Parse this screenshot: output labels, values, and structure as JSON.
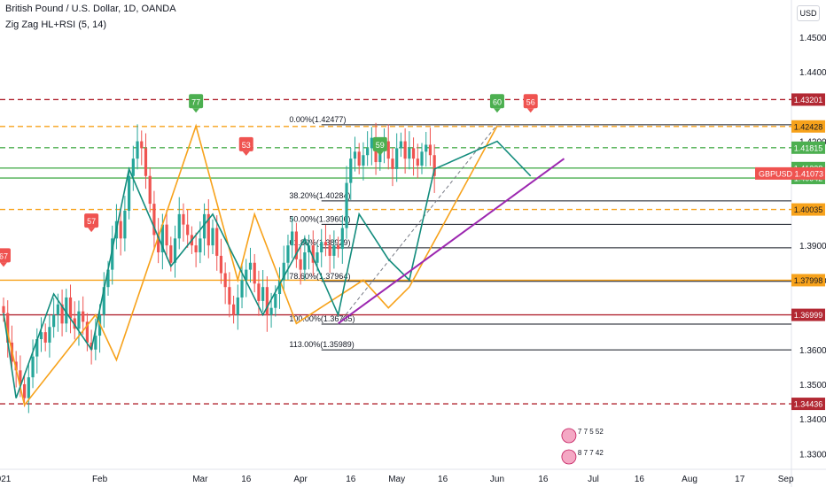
{
  "header": {
    "title": "British Pound / U.S. Dollar, 1D, OANDA",
    "indicator": "Zig Zag HL+RSI (5, 14)",
    "currency": "USD"
  },
  "colors": {
    "up": "#26a69a",
    "down": "#ef5350",
    "zigzag_orange": "#f7a21b",
    "zigzag_teal": "#138c7d",
    "trend_purple": "#9c27b0",
    "red_level": "#b22833",
    "orange_level": "#f7a21b",
    "green_level": "#4caf50",
    "fib_line": "#131722",
    "price_tag": "#ef5350"
  },
  "chart_data": {
    "type": "candlestick",
    "instrument": "GBPUSD",
    "y_range": [
      1.3255,
      1.4607
    ],
    "y_ticks": [
      "1.45000",
      "1.44000",
      "1.42000",
      "1.39000",
      "1.38000",
      "1.36000",
      "1.35000",
      "1.34000",
      "1.33000"
    ],
    "x_ticks": [
      {
        "label": "021",
        "day": 0
      },
      {
        "label": "Feb",
        "day": 23
      },
      {
        "label": "Mar",
        "day": 47
      },
      {
        "label": "16",
        "day": 58
      },
      {
        "label": "Apr",
        "day": 71
      },
      {
        "label": "16",
        "day": 83
      },
      {
        "label": "May",
        "day": 94
      },
      {
        "label": "16",
        "day": 105
      },
      {
        "label": "Jun",
        "day": 118
      },
      {
        "label": "16",
        "day": 129
      },
      {
        "label": "Jul",
        "day": 141
      },
      {
        "label": "16",
        "day": 152
      },
      {
        "label": "Aug",
        "day": 164
      },
      {
        "label": "17",
        "day": 176
      },
      {
        "label": "Sep",
        "day": 187
      }
    ],
    "closes": [
      1.3705,
      1.362,
      1.3565,
      1.354,
      1.35,
      1.346,
      1.352,
      1.358,
      1.363,
      1.365,
      1.362,
      1.3665,
      1.37,
      1.373,
      1.3675,
      1.375,
      1.369,
      1.366,
      1.371,
      1.368,
      1.362,
      1.36,
      1.364,
      1.37,
      1.378,
      1.383,
      1.392,
      1.397,
      1.392,
      1.4,
      1.41,
      1.415,
      1.42,
      1.418,
      1.41,
      1.402,
      1.393,
      1.388,
      1.396,
      1.39,
      1.385,
      1.392,
      1.399,
      1.396,
      1.393,
      1.39,
      1.388,
      1.392,
      1.399,
      1.39,
      1.395,
      1.387,
      1.382,
      1.378,
      1.373,
      1.37,
      1.375,
      1.38,
      1.383,
      1.385,
      1.379,
      1.374,
      1.378,
      1.37,
      1.372,
      1.376,
      1.38,
      1.385,
      1.39,
      1.394,
      1.386,
      1.383,
      1.388,
      1.39,
      1.385,
      1.388,
      1.391,
      1.39,
      1.387,
      1.39,
      1.389,
      1.395,
      1.408,
      1.415,
      1.417,
      1.413,
      1.416,
      1.418,
      1.421,
      1.414,
      1.418,
      1.42,
      1.415,
      1.412,
      1.418,
      1.42,
      1.415,
      1.418,
      1.415,
      1.413,
      1.417,
      1.419,
      1.416,
      1.41
    ],
    "zigzag_orange": [
      [
        0,
        1.37
      ],
      [
        5,
        1.344
      ],
      [
        22,
        1.37
      ],
      [
        27,
        1.357
      ],
      [
        46,
        1.4244
      ],
      [
        56,
        1.38
      ],
      [
        60,
        1.399
      ],
      [
        70,
        1.3675
      ],
      [
        86,
        1.38
      ],
      [
        92,
        1.372
      ],
      [
        97,
        1.378
      ],
      [
        118,
        1.4244
      ]
    ],
    "zigzag_teal": [
      [
        0,
        1.3705
      ],
      [
        3,
        1.346
      ],
      [
        12,
        1.376
      ],
      [
        21,
        1.36
      ],
      [
        30,
        1.412
      ],
      [
        40,
        1.384
      ],
      [
        50,
        1.399
      ],
      [
        62,
        1.37
      ],
      [
        72,
        1.392
      ],
      [
        80,
        1.37
      ],
      [
        85,
        1.399
      ],
      [
        92,
        1.386
      ],
      [
        97,
        1.38
      ],
      [
        103,
        1.412
      ],
      [
        118,
        1.42
      ],
      [
        126,
        1.41
      ]
    ],
    "trendline": [
      [
        80,
        1.3675
      ],
      [
        134,
        1.415
      ]
    ],
    "fib_dashed": [
      [
        80,
        1.3673
      ],
      [
        118,
        1.4248
      ]
    ],
    "fibs": [
      {
        "label": "0.00%(1.42477)",
        "y": 1.42477,
        "x0": 70
      },
      {
        "label": "38.20%(1.40284)",
        "y": 1.40284,
        "x0": 70
      },
      {
        "label": "50.00%(1.39606)",
        "y": 1.39606,
        "x0": 70
      },
      {
        "label": "61.80%(1.38929)",
        "y": 1.38929,
        "x0": 70
      },
      {
        "label": "78.60%(1.37964)",
        "y": 1.37964,
        "x0": 70
      },
      {
        "label": "100.00%(1.36735)",
        "y": 1.36735,
        "x0": 70
      },
      {
        "label": "113.00%(1.35989)",
        "y": 1.35989,
        "x0": 70
      }
    ],
    "levels": [
      {
        "label": "1.43201",
        "y": 1.43201,
        "style": "dashed",
        "color": "#b22833",
        "tag_color": "#b22833"
      },
      {
        "label": "1.42428",
        "y": 1.42428,
        "style": "dashed",
        "color": "#f7a21b",
        "tag_color": "#f7a21b"
      },
      {
        "label": "1.41815",
        "y": 1.41815,
        "style": "dashed",
        "color": "#4caf50",
        "tag_color": "#4caf50"
      },
      {
        "label": "1.41228",
        "y": 1.41228,
        "style": "solid",
        "color": "#4caf50",
        "tag_color": "#4caf50"
      },
      {
        "label": "1.40942",
        "y": 1.40942,
        "style": "solid",
        "color": "#4caf50",
        "tag_color": "#4caf50"
      },
      {
        "label": "1.40035",
        "y": 1.40035,
        "style": "dashed",
        "color": "#f7a21b",
        "tag_color": "#f7a21b"
      },
      {
        "label": "1.37998",
        "y": 1.37998,
        "style": "solid",
        "color": "#f7a21b",
        "tag_color": "#f7a21b"
      },
      {
        "label": "1.36999",
        "y": 1.36999,
        "style": "solid",
        "color": "#b22833",
        "tag_color": "#b22833"
      },
      {
        "label": "1.34436",
        "y": 1.34436,
        "style": "dashed",
        "color": "#b22833",
        "tag_color": "#b22833"
      }
    ],
    "price_tag": {
      "symbol": "GBPUSD",
      "value": "1.41073",
      "y": 1.41073
    },
    "rsi_flags": [
      {
        "value": "77",
        "day": 46,
        "y": 1.4244,
        "color": "#4caf50",
        "dir": "down"
      },
      {
        "value": "60",
        "day": 118,
        "y": 1.4244,
        "color": "#4caf50",
        "dir": "down"
      },
      {
        "value": "56",
        "day": 126,
        "y": 1.4244,
        "color": "#ef5350",
        "dir": "down"
      },
      {
        "value": "53",
        "day": 58,
        "y": 1.412,
        "color": "#ef5350",
        "dir": "down"
      },
      {
        "value": "59",
        "day": 90,
        "y": 1.412,
        "color": "#4caf50",
        "dir": "down"
      },
      {
        "value": "57",
        "day": 21,
        "y": 1.39,
        "color": "#ef5350",
        "dir": "down"
      },
      {
        "value": "67",
        "day": 0,
        "y": 1.38,
        "color": "#ef5350",
        "dir": "down"
      }
    ],
    "stickers": [
      {
        "text": "7 7 5 52",
        "day": 136
      },
      {
        "text": "8 7 7 42",
        "day": 136
      }
    ]
  }
}
